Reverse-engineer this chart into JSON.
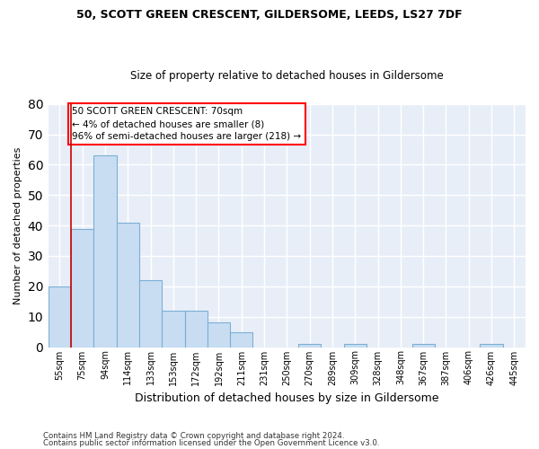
{
  "title": "50, SCOTT GREEN CRESCENT, GILDERSOME, LEEDS, LS27 7DF",
  "subtitle": "Size of property relative to detached houses in Gildersome",
  "xlabel": "Distribution of detached houses by size in Gildersome",
  "ylabel": "Number of detached properties",
  "categories": [
    "55sqm",
    "75sqm",
    "94sqm",
    "114sqm",
    "133sqm",
    "153sqm",
    "172sqm",
    "192sqm",
    "211sqm",
    "231sqm",
    "250sqm",
    "270sqm",
    "289sqm",
    "309sqm",
    "328sqm",
    "348sqm",
    "367sqm",
    "387sqm",
    "406sqm",
    "426sqm",
    "445sqm"
  ],
  "values": [
    20,
    39,
    63,
    41,
    22,
    12,
    12,
    8,
    5,
    0,
    0,
    1,
    0,
    1,
    0,
    0,
    1,
    0,
    0,
    1,
    0
  ],
  "bar_color": "#c9ddf2",
  "bar_edge_color": "#7bafd4",
  "ylim": [
    0,
    80
  ],
  "yticks": [
    0,
    10,
    20,
    30,
    40,
    50,
    60,
    70,
    80
  ],
  "annotation_line_color": "#cc0000",
  "annotation_box_text": "50 SCOTT GREEN CRESCENT: 70sqm\n← 4% of detached houses are smaller (8)\n96% of semi-detached houses are larger (218) →",
  "footer1": "Contains HM Land Registry data © Crown copyright and database right 2024.",
  "footer2": "Contains public sector information licensed under the Open Government Licence v3.0.",
  "fig_background": "#ffffff",
  "ax_background": "#e8eef8",
  "grid_color": "#ffffff",
  "title_fontsize": 9,
  "subtitle_fontsize": 8.5
}
